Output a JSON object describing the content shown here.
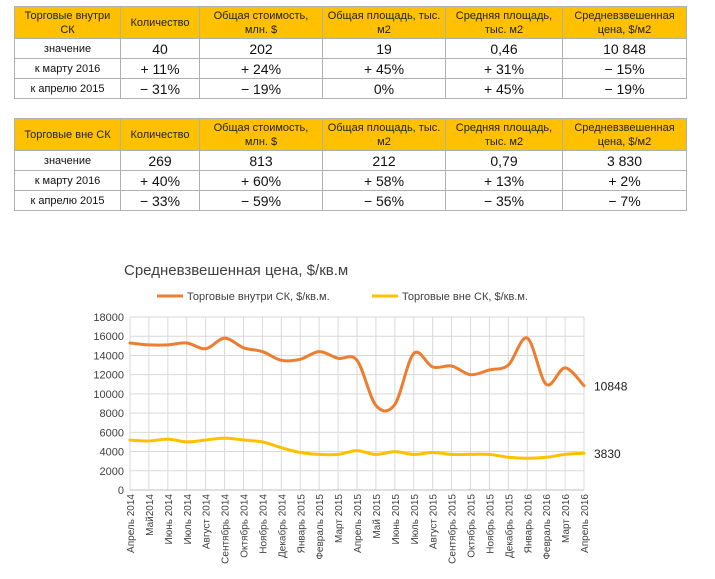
{
  "table1": {
    "header": [
      "Торговые внутри СК",
      "Количество",
      "Общая стоимость, млн. $",
      "Общая площадь, тыс. м2",
      "Средняя площадь, тыс. м2",
      "Средневзвешенная цена, $/м2"
    ],
    "rows": [
      [
        "значение",
        "40",
        "202",
        "19",
        "0,46",
        "10 848"
      ],
      [
        "к марту 2016",
        "+ 11%",
        "+ 24%",
        "+ 45%",
        "+ 31%",
        "− 15%"
      ],
      [
        "к апрелю 2015",
        "− 31%",
        "− 19%",
        "0%",
        "+ 45%",
        "− 19%"
      ]
    ]
  },
  "table2": {
    "header": [
      "Торговые вне СК",
      "Количество",
      "Общая стоимость, млн. $",
      "Общая площадь, тыс. м2",
      "Средняя площадь, тыс. м2",
      "Средневзвешенная цена, $/м2"
    ],
    "rows": [
      [
        "значение",
        "269",
        "813",
        "212",
        "0,79",
        "3 830"
      ],
      [
        "к марту 2016",
        "+ 40%",
        "+ 60%",
        "+ 58%",
        "+ 13%",
        "+ 2%"
      ],
      [
        "к апрелю 2015",
        "− 33%",
        "− 59%",
        "− 56%",
        "− 35%",
        "− 7%"
      ]
    ]
  },
  "chart_data": {
    "type": "line",
    "title": "Средневзвешенная цена, $/кв.м",
    "ylim": [
      0,
      18000
    ],
    "yticks": [
      0,
      2000,
      4000,
      6000,
      8000,
      10000,
      12000,
      14000,
      16000,
      18000
    ],
    "grid": true,
    "legend_position": "top",
    "categories": [
      "Апрель 2014",
      "Май2014",
      "Июнь 2014",
      "Июль 2014",
      "Август 2014",
      "Сентябрь 2014",
      "Октябрь 2014",
      "Ноябрь 2014",
      "Декабрь 2014",
      "Январь 2015",
      "Февраль 2015",
      "Март 2015",
      "Апрель 2015",
      "Май 2015",
      "Июнь 2015",
      "Июль 2015",
      "Август 2015",
      "Сентябрь 2015",
      "Октябрь 2015",
      "Ноябрь 2015",
      "Декабрь 2015",
      "Январь 2016",
      "Февраль 2016",
      "Март 2016",
      "Апрель 2016"
    ],
    "series": [
      {
        "name": "Торговые внутри СК, $/кв.м.",
        "color": "#ed7d31",
        "values": [
          15300,
          15100,
          15100,
          15300,
          14700,
          15800,
          14800,
          14400,
          13500,
          13600,
          14400,
          13700,
          13500,
          8800,
          8900,
          14200,
          12800,
          12900,
          12000,
          12500,
          13000,
          15800,
          11000,
          12700,
          10848
        ],
        "end_label": "10848"
      },
      {
        "name": "Торговые вне СК, $/кв.м.",
        "color": "#ffc000",
        "values": [
          5200,
          5100,
          5300,
          5000,
          5200,
          5400,
          5200,
          5000,
          4400,
          3900,
          3700,
          3700,
          4100,
          3700,
          4000,
          3700,
          3900,
          3700,
          3700,
          3700,
          3400,
          3300,
          3400,
          3700,
          3830
        ],
        "end_label": "3830"
      }
    ]
  }
}
